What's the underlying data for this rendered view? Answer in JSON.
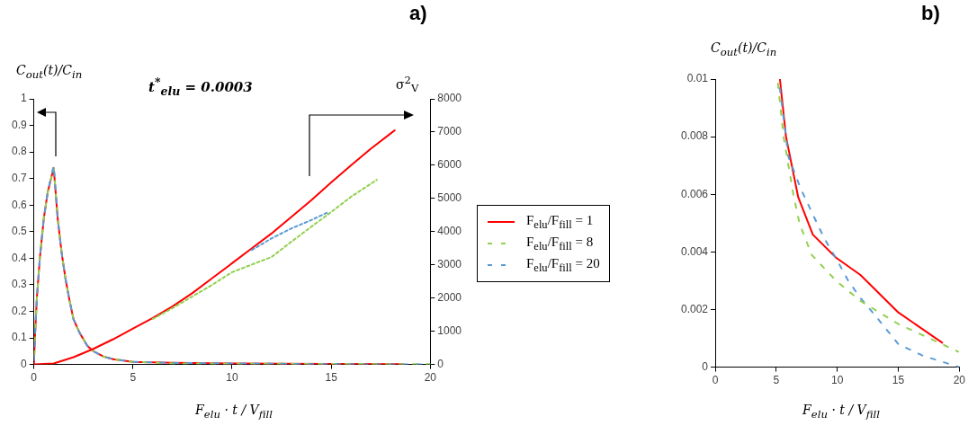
{
  "chart_data": [
    {
      "type": "line",
      "title": "a)",
      "ylabel": "C$_{out}$(t)/C$_{in}$",
      "y2label": "σ$^{2}$$_{V}$",
      "xlabel": "F$_{elu}$ · t / V$_{fill}$",
      "annotations": [
        "t$^{*}$$_{elu}$ = 0.0003"
      ],
      "xlim": [
        0,
        20
      ],
      "xticks": [
        0,
        5,
        10,
        15,
        20
      ],
      "ylim": [
        0,
        1
      ],
      "yticks": [
        0,
        0.1,
        0.2,
        0.3,
        0.4,
        0.5,
        0.6,
        0.7,
        0.8,
        0.9,
        1
      ],
      "y2lim": [
        0,
        8000
      ],
      "y2ticks": [
        0,
        1000,
        2000,
        3000,
        4000,
        5000,
        6000,
        7000,
        8000
      ],
      "grid": false,
      "legend": "right",
      "marker": "none",
      "series": [
        {
          "name": "F$_{elu}$/F$_{fill}$ = 1",
          "color": "#ff0000",
          "line_style": "solid",
          "x": [
            0,
            0.05,
            0.15,
            0.3,
            0.5,
            0.7,
            1.0,
            1.2,
            1.4,
            1.6,
            1.8,
            2.0,
            2.3,
            2.7,
            3.0,
            3.5,
            4.0,
            5.0,
            7.0,
            10.0,
            15.0,
            18.6
          ],
          "values": [
            0,
            0.1,
            0.25,
            0.4,
            0.55,
            0.65,
            0.74,
            0.55,
            0.42,
            0.32,
            0.24,
            0.17,
            0.12,
            0.07,
            0.05,
            0.03,
            0.02,
            0.01,
            0.006,
            0.004,
            0.002,
            0.001
          ]
        },
        {
          "name": "F$_{elu}$/F$_{fill}$ = 8",
          "color": "#92d050",
          "line_style": "dashed",
          "x": [
            0,
            0.05,
            0.15,
            0.3,
            0.5,
            0.7,
            1.0,
            1.2,
            1.4,
            1.6,
            1.8,
            2.0,
            2.3,
            2.7,
            3.0,
            3.5,
            4.0,
            5.0,
            7.0,
            10.0,
            15.0,
            20.0
          ],
          "values": [
            0,
            0.1,
            0.25,
            0.4,
            0.55,
            0.65,
            0.74,
            0.55,
            0.42,
            0.32,
            0.24,
            0.17,
            0.12,
            0.07,
            0.05,
            0.03,
            0.02,
            0.01,
            0.004,
            0.003,
            0.002,
            0.001
          ]
        },
        {
          "name": "F$_{elu}$/F$_{fill}$ = 20",
          "color": "#5b9bd5",
          "line_style": "dashed",
          "x": [
            0,
            0.05,
            0.15,
            0.3,
            0.5,
            0.7,
            1.0,
            1.2,
            1.4,
            1.6,
            1.8,
            2.0,
            2.3,
            2.7,
            3.0,
            3.5,
            4.0,
            5.0,
            7.0,
            10.0,
            15.0,
            20.0
          ],
          "values": [
            0,
            0.1,
            0.25,
            0.4,
            0.55,
            0.65,
            0.75,
            0.55,
            0.42,
            0.32,
            0.24,
            0.17,
            0.12,
            0.07,
            0.05,
            0.03,
            0.02,
            0.01,
            0.006,
            0.004,
            0.001,
            0
          ]
        },
        {
          "color": "#ff0000",
          "line_style": "solid",
          "axis": "y2",
          "x": [
            0,
            1,
            2,
            3,
            4,
            5,
            6,
            7,
            8,
            9,
            10,
            11,
            12,
            13,
            14,
            15,
            16,
            17,
            18.2
          ],
          "values": [
            0,
            30,
            220,
            470,
            760,
            1080,
            1400,
            1750,
            2150,
            2600,
            3050,
            3500,
            3950,
            4450,
            4950,
            5480,
            6000,
            6500,
            7050
          ]
        },
        {
          "color": "#92d050",
          "line_style": "dashed",
          "axis": "y2",
          "x": [
            6,
            7,
            8,
            9,
            10,
            11,
            12,
            13,
            14,
            15,
            16,
            17.3
          ],
          "values": [
            1370,
            1700,
            2050,
            2400,
            2780,
            3010,
            3240,
            3700,
            4150,
            4590,
            5050,
            5560
          ]
        },
        {
          "color": "#5b9bd5",
          "line_style": "dashed",
          "axis": "y2",
          "x": [
            11,
            12,
            13,
            14,
            14.9
          ],
          "values": [
            3450,
            3800,
            4100,
            4350,
            4600
          ]
        }
      ]
    },
    {
      "type": "line",
      "title": "b)",
      "ylabel": "C$_{out}$(t)/C$_{in}$",
      "xlabel": "F$_{elu}$ · t / V$_{fill}$",
      "xlim": [
        0,
        20
      ],
      "xticks": [
        0,
        5,
        10,
        15,
        20
      ],
      "ylim": [
        0,
        0.01
      ],
      "yticks": [
        0,
        0.002,
        0.004,
        0.006,
        0.008,
        0.01
      ],
      "grid": false,
      "marker": "none",
      "series": [
        {
          "color": "#ff0000",
          "line_style": "solid",
          "x": [
            5.3,
            5.8,
            6.8,
            8.0,
            9.9,
            11.9,
            15.0,
            18.6
          ],
          "values": [
            0.01,
            0.008,
            0.0059,
            0.0046,
            0.0038,
            0.0032,
            0.0019,
            0.00085
          ]
        },
        {
          "color": "#5b9bd5",
          "line_style": "dashed",
          "x": [
            5.2,
            6.0,
            7.0,
            8.0,
            8.9,
            10.0,
            10.9,
            11.9,
            13.1,
            15.0,
            17.0,
            20.0
          ],
          "values": [
            0.01,
            0.0073,
            0.0062,
            0.0053,
            0.0045,
            0.0037,
            0.003,
            0.0024,
            0.0018,
            0.0008,
            0.0004,
            0
          ]
        },
        {
          "color": "#92d050",
          "line_style": "dashed",
          "x": [
            5.1,
            5.6,
            6.4,
            6.9,
            7.9,
            9.9,
            11.9,
            15.0,
            19.9
          ],
          "values": [
            0.01,
            0.008,
            0.006,
            0.005,
            0.0039,
            0.003,
            0.0023,
            0.0015,
            0.00054
          ]
        }
      ]
    }
  ]
}
